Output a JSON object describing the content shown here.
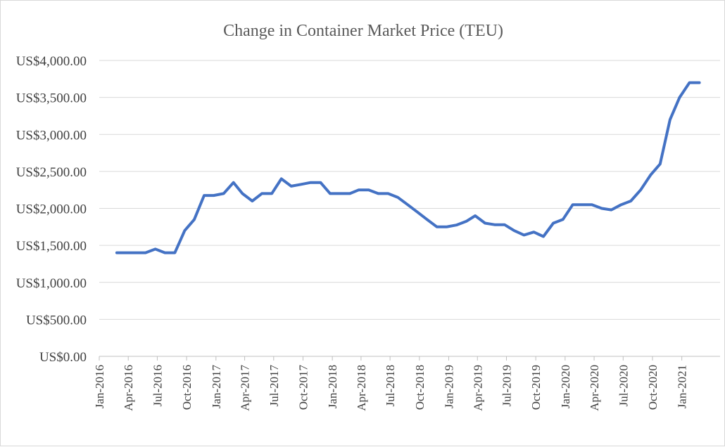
{
  "chart_data": {
    "type": "line",
    "title": "Change in Container Market Price (TEU)",
    "xlabel": "",
    "ylabel": "",
    "ylim": [
      0,
      4000
    ],
    "y_ticks": [
      "US$0.00",
      "US$500.00",
      "US$1,000.00",
      "US$1,500.00",
      "US$2,000.00",
      "US$2,500.00",
      "US$3,000.00",
      "US$3,500.00",
      "US$4,000.00"
    ],
    "y_tick_values": [
      0,
      500,
      1000,
      1500,
      2000,
      2500,
      3000,
      3500,
      4000
    ],
    "x_ticks": [
      "Jan-2016",
      "Apr-2016",
      "Jul-2016",
      "Oct-2016",
      "Jan-2017",
      "Apr-2017",
      "Jul-2017",
      "Oct-2017",
      "Jan-2018",
      "Apr-2018",
      "Jul-2018",
      "Oct-2018",
      "Jan-2019",
      "Apr-2019",
      "Jul-2019",
      "Oct-2019",
      "Jan-2020",
      "Apr-2020",
      "Jul-2020",
      "Oct-2020",
      "Jan-2021"
    ],
    "x_tick_values": [
      "2016-01",
      "2016-04",
      "2016-07",
      "2016-10",
      "2017-01",
      "2017-04",
      "2017-07",
      "2017-10",
      "2018-01",
      "2018-04",
      "2018-07",
      "2018-10",
      "2019-01",
      "2019-04",
      "2019-07",
      "2019-10",
      "2020-01",
      "2020-04",
      "2020-07",
      "2020-10",
      "2021-01"
    ],
    "xlim": [
      "2016-01",
      "2021-05"
    ],
    "grid": true,
    "legend": "none",
    "line_color": "#4472c4",
    "series": [
      {
        "x": [
          "2016-02-25",
          "2016-03-25",
          "2016-04-25",
          "2016-05-25",
          "2016-06-25",
          "2016-07-25",
          "2016-08-25",
          "2016-09-25",
          "2016-10-25",
          "2016-11-25",
          "2016-12-25",
          "2017-01-25",
          "2017-02-25",
          "2017-03-25",
          "2017-04-25",
          "2017-05-25",
          "2017-06-25",
          "2017-07-25",
          "2017-08-25",
          "2017-09-25",
          "2017-10-25",
          "2017-11-25",
          "2017-12-25",
          "2018-01-25",
          "2018-02-25",
          "2018-03-25",
          "2018-04-25",
          "2018-05-25",
          "2018-06-25",
          "2018-07-25",
          "2018-08-25",
          "2018-09-25",
          "2018-10-25",
          "2018-11-25",
          "2018-12-25",
          "2019-01-25",
          "2019-02-25",
          "2019-03-25",
          "2019-04-25",
          "2019-05-25",
          "2019-06-25",
          "2019-07-25",
          "2019-08-25",
          "2019-09-25",
          "2019-10-25",
          "2019-11-25",
          "2019-12-25",
          "2020-01-25",
          "2020-02-25",
          "2020-03-25",
          "2020-04-25",
          "2020-05-25",
          "2020-06-25",
          "2020-07-25",
          "2020-08-25",
          "2020-09-25",
          "2020-10-25",
          "2020-11-25",
          "2020-12-25",
          "2021-01-25",
          "2021-02-25"
        ],
        "values": [
          1400,
          1400,
          1400,
          1400,
          1450,
          1400,
          1400,
          1700,
          1850,
          2175,
          2175,
          2200,
          2350,
          2200,
          2100,
          2200,
          2200,
          2400,
          2300,
          2325,
          2350,
          2350,
          2200,
          2200,
          2200,
          2250,
          2250,
          2200,
          2200,
          2150,
          2050,
          1950,
          1850,
          1750,
          1750,
          1775,
          1825,
          1900,
          1800,
          1780,
          1780,
          1700,
          1640,
          1680,
          1620,
          1800,
          1850,
          2050,
          2050,
          2050,
          2000,
          1980,
          2050,
          2100,
          2250,
          2450,
          2600,
          3200,
          3500,
          3700,
          3700
        ]
      }
    ]
  }
}
